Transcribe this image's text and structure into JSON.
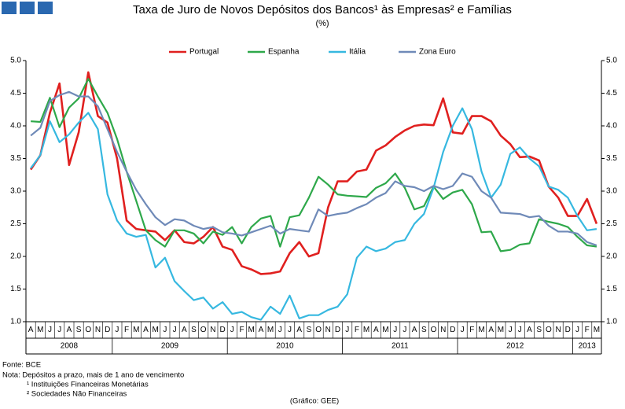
{
  "chart_data": {
    "type": "line",
    "title": "Taxa de Juro de Novos Depósitos dos Bancos¹ às Empresas² e Famílias",
    "subtitle": "(%)",
    "categories": [
      "A",
      "M",
      "J",
      "J",
      "A",
      "S",
      "O",
      "N",
      "D",
      "J",
      "F",
      "M",
      "A",
      "M",
      "J",
      "J",
      "A",
      "S",
      "O",
      "N",
      "D",
      "J",
      "F",
      "M",
      "A",
      "M",
      "J",
      "J",
      "A",
      "S",
      "O",
      "N",
      "D",
      "J",
      "F",
      "M",
      "A",
      "M",
      "J",
      "J",
      "A",
      "S",
      "O",
      "N",
      "D",
      "J",
      "F",
      "M",
      "A",
      "M",
      "J",
      "J",
      "A",
      "S",
      "O",
      "N",
      "D",
      "J",
      "F",
      "M"
    ],
    "years": [
      "2008",
      "2009",
      "2010",
      "2011",
      "2012",
      "2013"
    ],
    "series": [
      {
        "name": "Portugal",
        "color": "#e0201f",
        "values": [
          3.33,
          3.55,
          4.2,
          4.65,
          3.4,
          3.9,
          4.82,
          4.15,
          4.05,
          3.5,
          2.55,
          2.42,
          2.4,
          2.38,
          2.25,
          2.4,
          2.22,
          2.2,
          2.3,
          2.45,
          2.15,
          2.1,
          1.85,
          1.8,
          1.73,
          1.74,
          1.77,
          2.05,
          2.22,
          2.0,
          2.05,
          2.75,
          3.15,
          3.15,
          3.3,
          3.33,
          3.62,
          3.7,
          3.83,
          3.93,
          4.0,
          4.02,
          4.01,
          4.42,
          3.9,
          3.88,
          4.15,
          4.15,
          4.07,
          3.85,
          3.72,
          3.52,
          3.53,
          3.47,
          3.07,
          2.9,
          2.62,
          2.62,
          2.88,
          2.5
        ]
      },
      {
        "name": "Espanha",
        "color": "#2ea84a",
        "values": [
          4.07,
          4.06,
          4.43,
          3.98,
          4.28,
          4.42,
          4.72,
          4.45,
          4.2,
          3.8,
          3.3,
          2.85,
          2.4,
          2.25,
          2.15,
          2.4,
          2.4,
          2.35,
          2.2,
          2.38,
          2.33,
          2.45,
          2.2,
          2.45,
          2.58,
          2.62,
          2.15,
          2.6,
          2.63,
          2.9,
          3.22,
          3.1,
          2.95,
          2.93,
          2.92,
          2.91,
          3.05,
          3.12,
          3.27,
          3.05,
          2.72,
          2.77,
          3.07,
          2.88,
          2.98,
          3.02,
          2.8,
          2.37,
          2.38,
          2.08,
          2.1,
          2.18,
          2.2,
          2.57,
          2.53,
          2.5,
          2.45,
          2.3,
          2.17,
          2.15
        ]
      },
      {
        "name": "Itália",
        "color": "#36b8e0",
        "values": [
          3.35,
          3.55,
          4.07,
          3.75,
          3.87,
          4.05,
          4.2,
          3.95,
          2.95,
          2.55,
          2.35,
          2.3,
          2.33,
          1.83,
          1.98,
          1.62,
          1.47,
          1.33,
          1.37,
          1.2,
          1.3,
          1.12,
          1.15,
          1.07,
          1.03,
          1.23,
          1.12,
          1.4,
          1.05,
          1.1,
          1.1,
          1.18,
          1.23,
          1.42,
          1.98,
          2.15,
          2.08,
          2.12,
          2.22,
          2.25,
          2.5,
          2.65,
          3.05,
          3.6,
          4.0,
          4.27,
          3.95,
          3.3,
          2.9,
          3.1,
          3.57,
          3.67,
          3.5,
          3.38,
          3.07,
          3.02,
          2.9,
          2.62,
          2.4,
          2.42
        ]
      },
      {
        "name": "Zona Euro",
        "color": "#6f8ab8",
        "values": [
          3.85,
          3.97,
          4.38,
          4.47,
          4.52,
          4.45,
          4.45,
          4.3,
          3.95,
          3.6,
          3.3,
          3.02,
          2.8,
          2.6,
          2.48,
          2.57,
          2.55,
          2.47,
          2.42,
          2.45,
          2.37,
          2.35,
          2.32,
          2.37,
          2.42,
          2.47,
          2.35,
          2.42,
          2.4,
          2.38,
          2.72,
          2.62,
          2.65,
          2.67,
          2.74,
          2.8,
          2.9,
          2.97,
          3.15,
          3.08,
          3.06,
          3.0,
          3.08,
          3.03,
          3.08,
          3.27,
          3.22,
          3.0,
          2.9,
          2.67,
          2.66,
          2.65,
          2.6,
          2.62,
          2.47,
          2.38,
          2.38,
          2.35,
          2.22,
          2.17
        ]
      }
    ],
    "ylim": [
      1,
      5
    ],
    "yticks": [
      {
        "value": 1,
        "label": "1.0"
      },
      1.5,
      {
        "value": 2,
        "label": "2.0"
      },
      2.5,
      {
        "value": 3,
        "label": "3.0"
      },
      3.5,
      {
        "value": 4,
        "label": "4.0"
      },
      4.5,
      {
        "value": 5,
        "label": "5.0"
      }
    ],
    "y2lim": [
      1,
      5
    ],
    "y2ticks": [
      {
        "value": 1,
        "label": "1.0"
      },
      1.5,
      {
        "value": 2,
        "label": "2.0"
      },
      2.5,
      {
        "value": 3,
        "label": "3.0"
      },
      3.5,
      {
        "value": 4,
        "label": "4.0"
      },
      4.5,
      {
        "value": 5,
        "label": "5.0"
      }
    ],
    "grid": false,
    "legend": "top",
    "notes": [
      "Fonte: BCE",
      "Nota: Depósitos a prazo, mais de 1 ano de vencimento",
      "¹ Instituições Financeiras Monetárias",
      "² Sociedades Não Financeiras"
    ],
    "credit": "(Gráfico: GEE)"
  }
}
